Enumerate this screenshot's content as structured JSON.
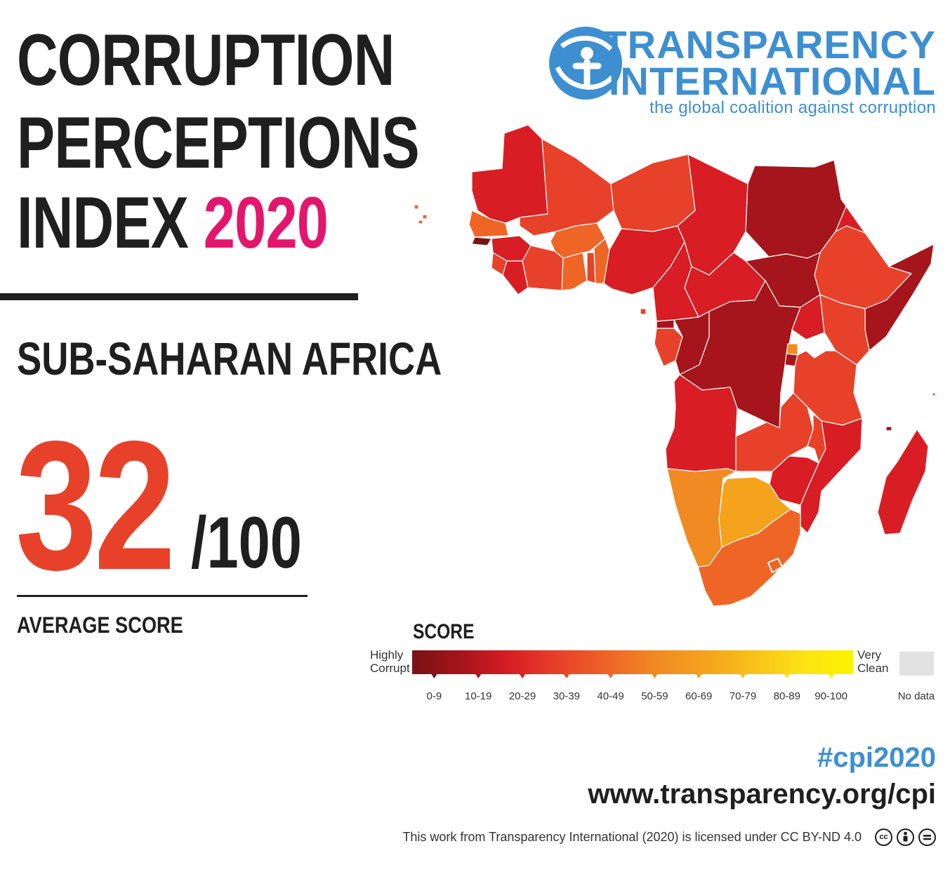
{
  "header": {
    "title_lines": [
      "CORRUPTION",
      "PERCEPTIONS",
      "INDEX"
    ],
    "year": "2020"
  },
  "region": "SUB-SAHARAN AFRICA",
  "score": {
    "value": "32",
    "out_of": "/100",
    "label": "AVERAGE SCORE"
  },
  "logo": {
    "name_line1": "TRANSPARENCY",
    "name_line2": "INTERNATIONAL",
    "tagline": "the global coalition against corruption",
    "color": "#3d8fd1",
    "icon": "ti-globe-figure-icon"
  },
  "legend": {
    "title": "SCORE",
    "low_label_1": "Highly",
    "low_label_2": "Corrupt",
    "high_label_1": "Very",
    "high_label_2": "Clean",
    "ranges": [
      "0-9",
      "10-19",
      "20-29",
      "30-39",
      "40-49",
      "50-59",
      "60-69",
      "70-79",
      "80-89",
      "90-100"
    ],
    "colors": [
      "#7a1214",
      "#a5151b",
      "#d81e24",
      "#e8412a",
      "#ef6526",
      "#f18a22",
      "#f5a21d",
      "#f8c21a",
      "#fce314",
      "#fff200"
    ],
    "no_data_label": "No data",
    "no_data_color": "#e2e2e2"
  },
  "map": {
    "region_colors": {
      "r10_19": "#a5151b",
      "r20_29": "#d81e24",
      "r30_39": "#e8412a",
      "r40_49": "#ef6526",
      "r50_59": "#f18a22",
      "r60_69": "#f5a21d"
    }
  },
  "footer": {
    "hashtag": "#cpi2020",
    "url": "www.transparency.org/cpi",
    "license": "This work from Transparency International (2020) is licensed under CC BY-ND 4.0",
    "license_icons": [
      "cc-icon",
      "by-icon",
      "nd-icon"
    ]
  }
}
